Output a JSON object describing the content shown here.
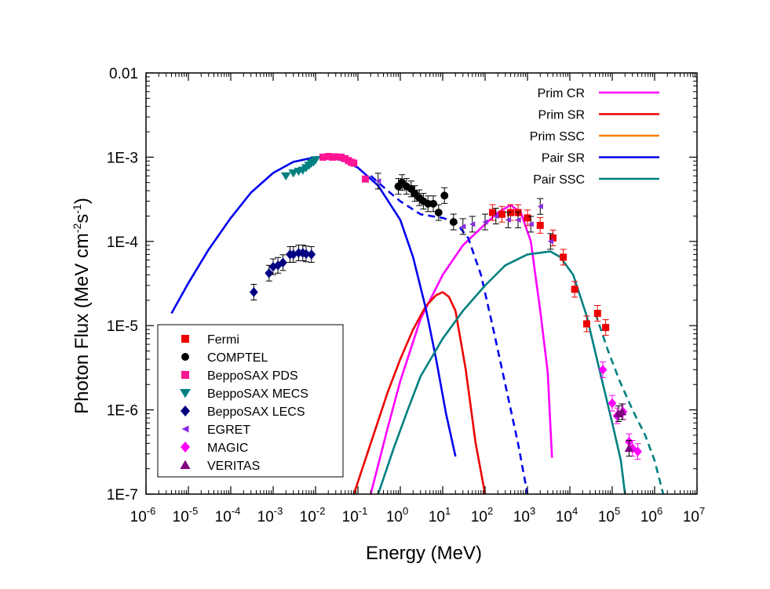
{
  "chart_data": {
    "type": "scatter",
    "title": "",
    "xlabel": "Energy (MeV)",
    "ylabel_parts": [
      "Photon Flux (MeV cm",
      "-2",
      "s",
      "-1",
      ")"
    ],
    "x_scale": "log",
    "y_scale": "log",
    "xlim": [
      1e-06,
      10000000.0
    ],
    "ylim": [
      1e-07,
      0.01
    ],
    "x_ticks": [
      {
        "v": 1e-06,
        "base": "10",
        "exp": "-6"
      },
      {
        "v": 1e-05,
        "base": "10",
        "exp": "-5"
      },
      {
        "v": 0.0001,
        "base": "10",
        "exp": "-4"
      },
      {
        "v": 0.001,
        "base": "10",
        "exp": "-3"
      },
      {
        "v": 0.01,
        "base": "10",
        "exp": "-2"
      },
      {
        "v": 0.1,
        "base": "10",
        "exp": "-1"
      },
      {
        "v": 1.0,
        "base": "10",
        "exp": "0"
      },
      {
        "v": 10.0,
        "base": "10",
        "exp": "1"
      },
      {
        "v": 100.0,
        "base": "10",
        "exp": "2"
      },
      {
        "v": 1000.0,
        "base": "10",
        "exp": "3"
      },
      {
        "v": 10000.0,
        "base": "10",
        "exp": "4"
      },
      {
        "v": 100000.0,
        "base": "10",
        "exp": "5"
      },
      {
        "v": 1000000.0,
        "base": "10",
        "exp": "6"
      },
      {
        "v": 10000000.0,
        "base": "10",
        "exp": "7"
      }
    ],
    "y_ticks": [
      {
        "v": 1e-07,
        "label": "1E-7"
      },
      {
        "v": 1e-06,
        "label": "1E-6"
      },
      {
        "v": 1e-05,
        "label": "1E-5"
      },
      {
        "v": 0.0001,
        "label": "1E-4"
      },
      {
        "v": 0.001,
        "label": "1E-3"
      },
      {
        "v": 0.01,
        "label": "0.01"
      }
    ],
    "grid": false,
    "lines": [
      {
        "name": "Prim CR",
        "color": "#ff00ff",
        "style": "solid",
        "points": [
          [
            0.2,
            1e-07
          ],
          [
            0.5,
            6e-07
          ],
          [
            1,
            2.2e-06
          ],
          [
            3,
            1.2e-05
          ],
          [
            10,
            4e-05
          ],
          [
            30,
            9e-05
          ],
          [
            100,
            0.00016
          ],
          [
            200,
            0.00022
          ],
          [
            400,
            0.00027
          ],
          [
            700,
            0.00022
          ],
          [
            1200,
            0.0001
          ],
          [
            2000,
            1.5e-05
          ],
          [
            3000,
            2.8e-06
          ],
          [
            3800,
            2.7e-07
          ]
        ]
      },
      {
        "name": "Prim SR",
        "color": "#ee0000",
        "style": "solid",
        "points": [
          [
            0.08,
            1e-07
          ],
          [
            0.2,
            4e-07
          ],
          [
            0.5,
            1.6e-06
          ],
          [
            1,
            4e-06
          ],
          [
            2,
            9e-06
          ],
          [
            4,
            1.7e-05
          ],
          [
            7,
            2.3e-05
          ],
          [
            10,
            2.5e-05
          ],
          [
            14,
            2.2e-05
          ],
          [
            20,
            1.5e-05
          ],
          [
            35,
            3e-06
          ],
          [
            60,
            4e-07
          ],
          [
            100,
            1e-07
          ]
        ]
      },
      {
        "name": "Prim SSC",
        "color": "#ff8000",
        "style": "solid",
        "points": []
      },
      {
        "name": "Pair SR",
        "color": "#0000ee",
        "style": "solid",
        "points": [
          [
            4e-06,
            1.4e-05
          ],
          [
            1e-05,
            3.2e-05
          ],
          [
            3e-05,
            8e-05
          ],
          [
            0.0001,
            0.00019
          ],
          [
            0.0003,
            0.00038
          ],
          [
            0.001,
            0.00065
          ],
          [
            0.003,
            0.00088
          ],
          [
            0.01,
            0.001
          ],
          [
            0.02,
            0.001
          ],
          [
            0.05,
            0.0009
          ],
          [
            0.1,
            0.00075
          ],
          [
            0.3,
            0.00046
          ],
          [
            1,
            0.00018
          ],
          [
            2,
            6.5e-05
          ],
          [
            4,
            1.6e-05
          ],
          [
            7,
            4e-06
          ],
          [
            12,
            9e-07
          ],
          [
            20,
            2.8e-07
          ]
        ]
      },
      {
        "name": "Pair SR (dashed)",
        "color": "#0000ee",
        "style": "dashed",
        "points": [
          [
            0.2,
            0.0006
          ],
          [
            0.5,
            0.0004
          ],
          [
            1,
            0.0003
          ],
          [
            3,
            0.00021
          ],
          [
            10,
            0.00019
          ],
          [
            20,
            0.00017
          ],
          [
            40,
            0.00011
          ],
          [
            80,
            4e-05
          ],
          [
            150,
            1e-05
          ],
          [
            300,
            2e-06
          ],
          [
            600,
            4e-07
          ],
          [
            1000,
            1e-07
          ]
        ]
      },
      {
        "name": "Pair SSC",
        "color": "#008080",
        "style": "solid",
        "points": [
          [
            0.3,
            1e-07
          ],
          [
            0.7,
            3.5e-07
          ],
          [
            1.5,
            1e-06
          ],
          [
            3,
            2.5e-06
          ],
          [
            10,
            7e-06
          ],
          [
            30,
            1.5e-05
          ],
          [
            100,
            3e-05
          ],
          [
            300,
            5.2e-05
          ],
          [
            1000,
            7e-05
          ],
          [
            3500,
            7.6e-05
          ],
          [
            6000,
            6.5e-05
          ],
          [
            12000,
            4e-05
          ],
          [
            25000,
            1.3e-05
          ],
          [
            50000,
            3e-06
          ],
          [
            100000,
            7e-07
          ],
          [
            160000,
            2.5e-07
          ],
          [
            200000,
            1e-07
          ]
        ]
      },
      {
        "name": "Pair SSC (dashed)",
        "color": "#008080",
        "style": "dashed",
        "points": [
          [
            40000,
            1.4e-05
          ],
          [
            80000,
            5e-06
          ],
          [
            150000,
            2.2e-06
          ],
          [
            300000,
            1e-06
          ],
          [
            600000,
            5e-07
          ],
          [
            1000000,
            2.5e-07
          ],
          [
            1600000,
            1e-07
          ]
        ]
      }
    ],
    "series": [
      {
        "name": "Fermi",
        "color": "#ee0000",
        "marker": "square",
        "points": [
          [
            150,
            0.00022
          ],
          [
            250,
            0.00021
          ],
          [
            400,
            0.00022
          ],
          [
            600,
            0.00022
          ],
          [
            1000,
            0.00019
          ],
          [
            2000,
            0.000155
          ],
          [
            4000,
            0.00011
          ],
          [
            7000,
            6.5e-05
          ],
          [
            13000,
            2.7e-05
          ],
          [
            25000,
            1.05e-05
          ],
          [
            45000,
            1.4e-05
          ],
          [
            70000,
            9.5e-06
          ]
        ]
      },
      {
        "name": "COMPTEL",
        "color": "#000000",
        "marker": "circle",
        "points": [
          [
            0.9,
            0.00045
          ],
          [
            1.1,
            0.0005
          ],
          [
            1.4,
            0.00045
          ],
          [
            1.8,
            0.00042
          ],
          [
            2.2,
            0.00037
          ],
          [
            2.8,
            0.00033
          ],
          [
            3.5,
            0.0003
          ],
          [
            4.5,
            0.00028
          ],
          [
            6,
            0.00028
          ],
          [
            8,
            0.00022
          ],
          [
            11,
            0.00035
          ],
          [
            18,
            0.00017
          ]
        ]
      },
      {
        "name": "BeppoSAX PDS",
        "color": "#ff1493",
        "marker": "square",
        "points": [
          [
            0.015,
            0.001
          ],
          [
            0.02,
            0.00102
          ],
          [
            0.025,
            0.001
          ],
          [
            0.03,
            0.00101
          ],
          [
            0.04,
            0.001
          ],
          [
            0.05,
            0.00096
          ],
          [
            0.06,
            0.00091
          ],
          [
            0.07,
            0.00087
          ],
          [
            0.08,
            0.00085
          ],
          [
            0.15,
            0.00055
          ]
        ]
      },
      {
        "name": "BeppoSAX MECS",
        "color": "#008080",
        "marker": "triangle-down",
        "points": [
          [
            0.002,
            0.0006
          ],
          [
            0.003,
            0.00065
          ],
          [
            0.004,
            0.00068
          ],
          [
            0.005,
            0.0007
          ],
          [
            0.006,
            0.00075
          ],
          [
            0.007,
            0.0008
          ],
          [
            0.008,
            0.00085
          ],
          [
            0.009,
            0.00088
          ],
          [
            0.01,
            0.00093
          ]
        ]
      },
      {
        "name": "BeppoSAX LECS",
        "color": "#000080",
        "marker": "diamond",
        "points": [
          [
            0.00035,
            2.5e-05
          ],
          [
            0.0008,
            4.2e-05
          ],
          [
            0.001,
            5e-05
          ],
          [
            0.0013,
            5.2e-05
          ],
          [
            0.0017,
            5.6e-05
          ],
          [
            0.0025,
            7e-05
          ],
          [
            0.003,
            7e-05
          ],
          [
            0.004,
            7.3e-05
          ],
          [
            0.005,
            7.3e-05
          ],
          [
            0.006,
            7.1e-05
          ],
          [
            0.008,
            7e-05
          ]
        ]
      },
      {
        "name": "EGRET",
        "color": "#8a2be2",
        "marker": "triangle-left",
        "points": [
          [
            0.3,
            0.00052
          ],
          [
            30,
            0.00015
          ],
          [
            50,
            0.00016
          ],
          [
            100,
            0.00017
          ],
          [
            180,
            0.0002
          ],
          [
            350,
            0.00018
          ],
          [
            600,
            0.00018
          ],
          [
            1200,
            0.00016
          ],
          [
            2000,
            0.00026
          ],
          [
            3500,
            0.0001
          ]
        ]
      },
      {
        "name": "MAGIC",
        "color": "#ff00ff",
        "marker": "diamond",
        "points": [
          [
            60000,
            3e-06
          ],
          [
            100000,
            1.2e-06
          ],
          [
            130000,
            8.5e-07
          ],
          [
            180000,
            9.5e-07
          ],
          [
            250000,
            4.2e-07
          ],
          [
            300000,
            3.5e-07
          ],
          [
            400000,
            3.2e-07
          ]
        ]
      },
      {
        "name": "VERITAS",
        "color": "#800080",
        "marker": "triangle-up",
        "points": [
          [
            140000,
            9e-07
          ],
          [
            170000,
            9.5e-07
          ],
          [
            250000,
            3.5e-07
          ]
        ]
      }
    ],
    "legend": {
      "placement": "bottom-left",
      "entries": [
        "Fermi",
        "COMPTEL",
        "BeppoSAX PDS",
        "BeppoSAX MECS",
        "BeppoSAX LECS",
        "EGRET",
        "MAGIC",
        "VERITAS"
      ]
    },
    "line_legend": {
      "placement": "top-right",
      "entries": [
        {
          "label": "Prim CR",
          "color": "#ff00ff"
        },
        {
          "label": "Prim SR",
          "color": "#ee0000"
        },
        {
          "label": "Prim SSC",
          "color": "#ff8000"
        },
        {
          "label": "Pair SR",
          "color": "#0000ee"
        },
        {
          "label": "Pair SSC",
          "color": "#008080"
        }
      ]
    }
  }
}
